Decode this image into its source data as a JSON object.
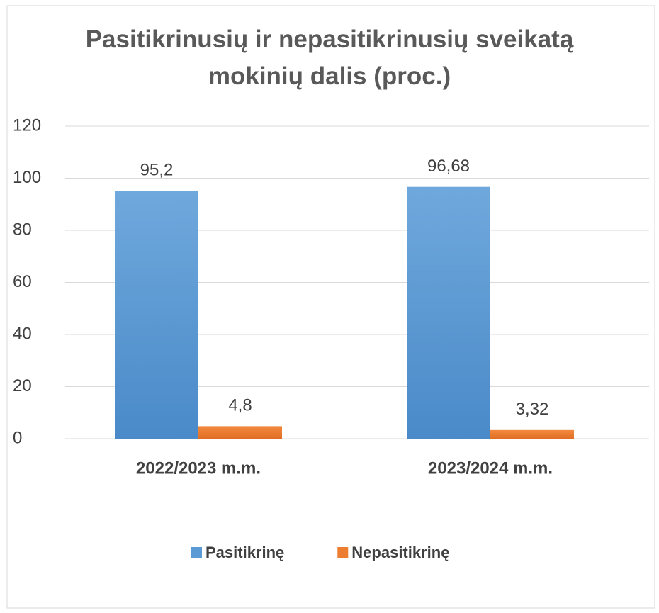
{
  "chart_data": {
    "type": "bar",
    "title": "Pasitikrinusių ir nepasitikrinusių sveikatą mokinių dalis (proc.)",
    "categories": [
      "2022/2023 m.m.",
      "2023/2024 m.m."
    ],
    "series": [
      {
        "name": "Pasitikrinę",
        "color": "#5b9bd5",
        "values": [
          95.2,
          96.68
        ],
        "value_labels": [
          "95,2",
          "96,68"
        ]
      },
      {
        "name": "Nepasitikrinę",
        "color": "#ed7d31",
        "values": [
          4.8,
          3.32
        ],
        "value_labels": [
          "4,8",
          "3,32"
        ]
      }
    ],
    "ylim": [
      0,
      120
    ],
    "yticks": [
      0,
      20,
      40,
      60,
      80,
      100,
      120
    ],
    "grid": true,
    "legend": "bottom"
  }
}
